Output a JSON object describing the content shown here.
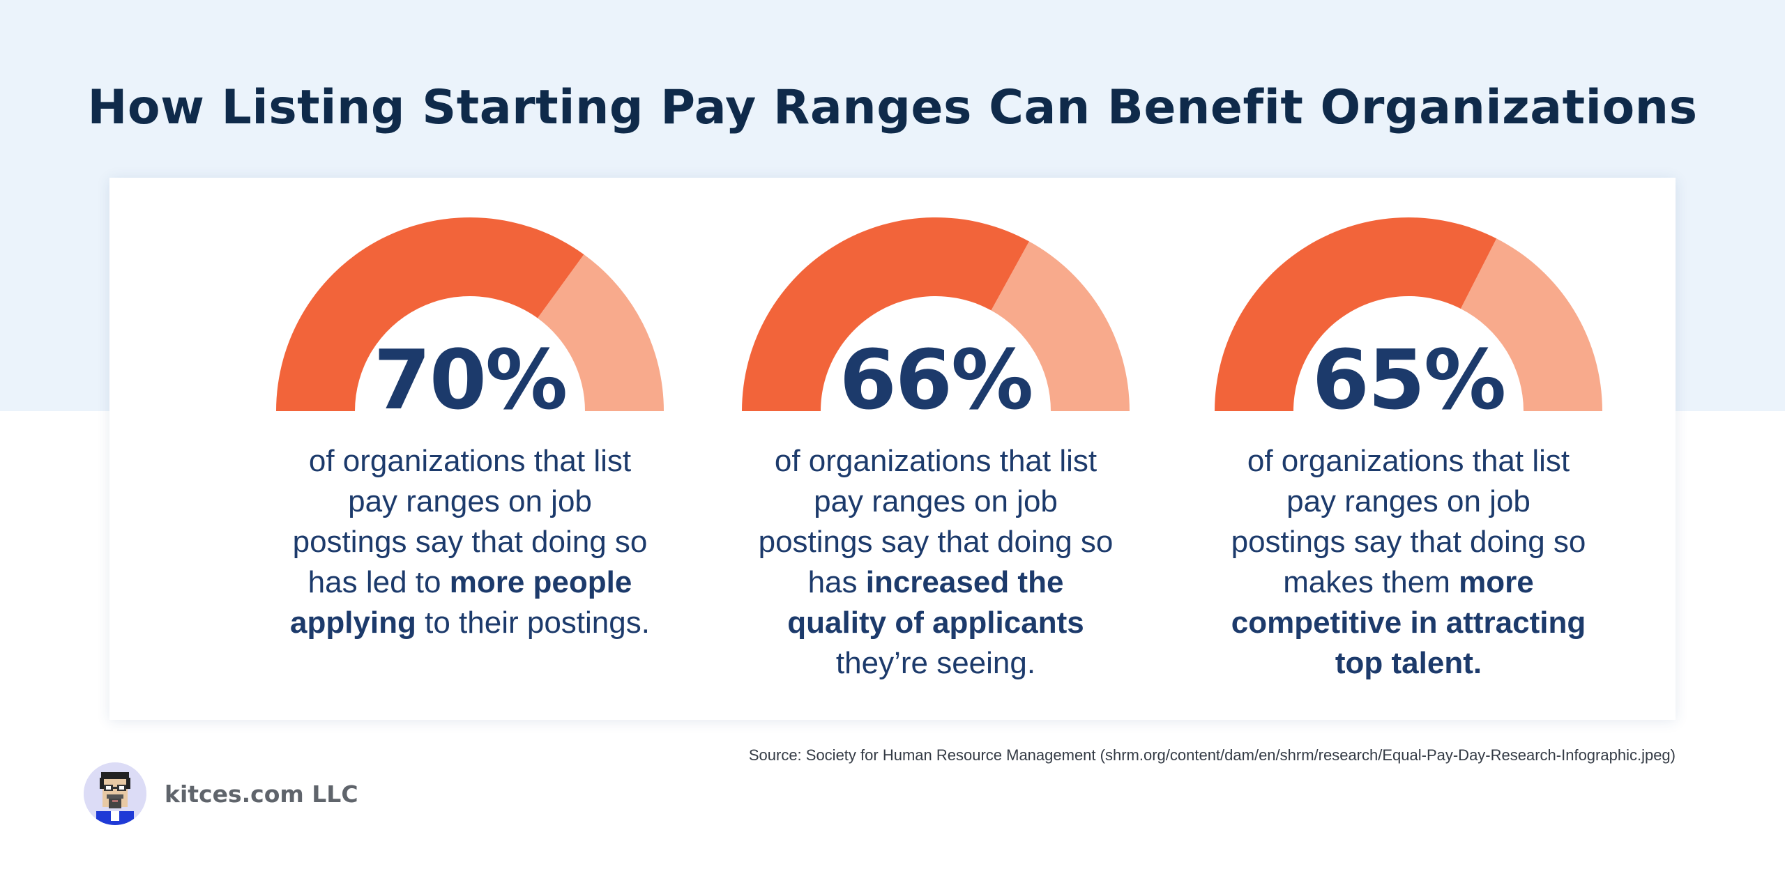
{
  "header": {
    "title": "How Listing Starting Pay Ranges Can Benefit Organizations"
  },
  "stats": [
    {
      "value_label": "70%",
      "desc_lead": "of organizations that list pay ranges on job postings say that doing so has led to ",
      "desc_bold": "more people applying",
      "desc_tail": " to their postings."
    },
    {
      "value_label": "66%",
      "desc_lead": "of organizations that list pay ranges on job postings say that doing so has ",
      "desc_bold": "increased the quality of applicants",
      "desc_tail": " they’re seeing."
    },
    {
      "value_label": "65%",
      "desc_lead": "of organizations that list pay ranges on job postings say that doing so makes them ",
      "desc_bold": "more competitive in attracting top talent.",
      "desc_tail": ""
    }
  ],
  "chart_data": {
    "type": "gauge",
    "categories": [
      "70%",
      "66%",
      "65%"
    ],
    "values": [
      70,
      66,
      65
    ],
    "ylim": [
      0,
      100
    ],
    "colors": {
      "filled": "#f2643a",
      "remaining": "#f8aa8c"
    }
  },
  "footer": {
    "source": "Source: Society for Human Resource Management (shrm.org/content/dam/en/shrm/research/Equal-Pay-Day-Research-Infographic.jpeg)",
    "brand_name": "kitces.com LLC"
  },
  "theme": {
    "title_color": "#0f2a4a",
    "text_color": "#1c3a6b",
    "band_color": "#ebf3fb"
  }
}
